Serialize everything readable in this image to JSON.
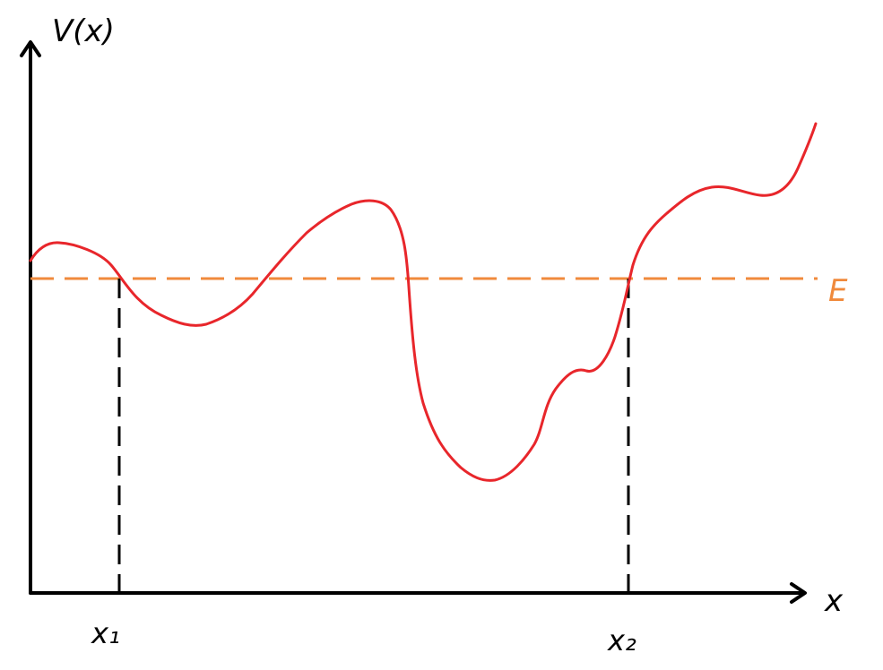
{
  "diagram": {
    "y_axis_label": "V(x)",
    "x_axis_label": "x",
    "energy_label": "E",
    "left_turning_point_label": "x₁",
    "right_turning_point_label": "x₂"
  },
  "colors": {
    "background": "#ffffff",
    "axes": "#000000",
    "potential_curve": "#e8262b",
    "energy_line": "#f08a3c",
    "turning_point_lines": "#000000"
  }
}
